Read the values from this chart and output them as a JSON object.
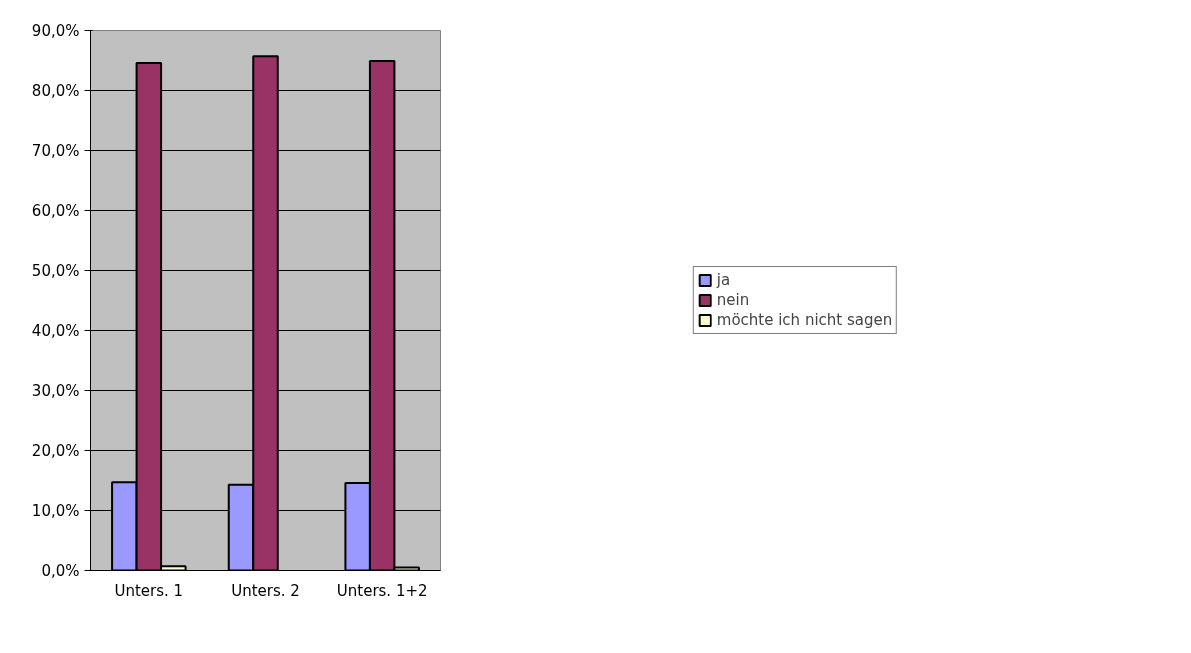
{
  "chart_data": {
    "type": "bar",
    "categories": [
      "Unters. 1",
      "Unters. 2",
      "Unters. 1+2"
    ],
    "series": [
      {
        "name": "ja",
        "color": "#9999ff",
        "values": [
          14.7,
          14.3,
          14.6
        ]
      },
      {
        "name": "nein",
        "color": "#993366",
        "values": [
          84.6,
          85.7,
          84.9
        ]
      },
      {
        "name": "möchte ich nicht sagen",
        "color": "#ffffcc",
        "values": [
          0.7,
          0,
          0.5
        ]
      }
    ],
    "ylim": [
      0,
      90
    ],
    "yticks": [
      {
        "value": 0,
        "label": "0,0%"
      },
      {
        "value": 10,
        "label": "10,0%"
      },
      {
        "value": 20,
        "label": "20,0%"
      },
      {
        "value": 30,
        "label": "30,0%"
      },
      {
        "value": 40,
        "label": "40,0%"
      },
      {
        "value": 50,
        "label": "50,0%"
      },
      {
        "value": 60,
        "label": "60,0%"
      },
      {
        "value": 70,
        "label": "70,0%"
      },
      {
        "value": 80,
        "label": "80,0%"
      },
      {
        "value": 90,
        "label": "90,0%"
      }
    ],
    "grid": "y",
    "legend": "right"
  }
}
